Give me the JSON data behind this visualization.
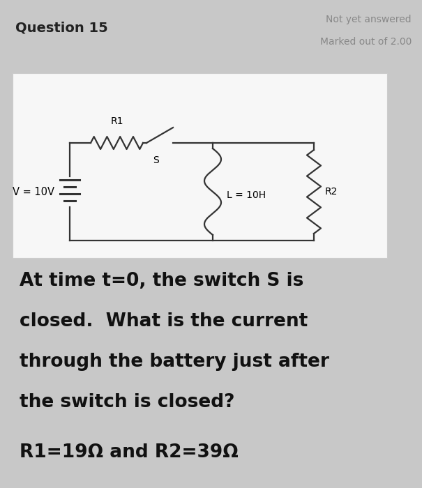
{
  "title_left": "Question 15",
  "title_right_line1": "Not yet answered",
  "title_right_line2": "Marked out of 2.00",
  "header_bg": "#ebebeb",
  "body_bg": "#ffffff",
  "circuit_panel_bg": "#f7f7f7",
  "circuit_panel_border": "#cccccc",
  "text_line1": "At time t=0, the switch S is",
  "text_line2": "closed.  What is the current",
  "text_line3": "through the battery just after",
  "text_line4": "the switch is closed?",
  "text_line5": "R1=19Ω and R2=39Ω",
  "label_R1": "R1",
  "label_S": "S",
  "label_L": "L = 10H",
  "label_R2": "R2",
  "label_V": "V = 10V",
  "wire_color": "#333333",
  "text_color": "#111111",
  "header_right_color": "#888888",
  "outer_bg": "#c8c8c8"
}
